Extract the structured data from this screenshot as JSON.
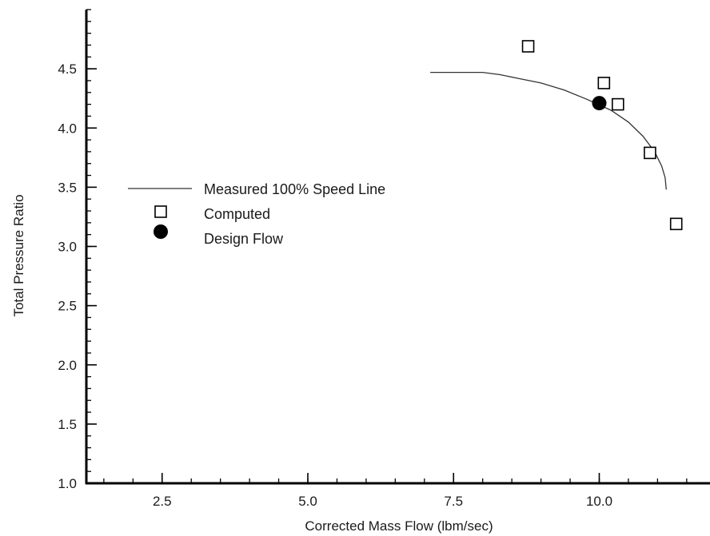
{
  "chart_data": {
    "type": "scatter",
    "xlabel": "Corrected Mass Flow (lbm/sec)",
    "ylabel": "Total Pressure Ratio",
    "xlim": [
      1.2,
      11.9
    ],
    "ylim": [
      1.0,
      5.0
    ],
    "x_ticks": [
      2.5,
      5.0,
      7.5,
      10.0
    ],
    "y_ticks": [
      1.0,
      1.5,
      2.0,
      2.5,
      3.0,
      3.5,
      4.0,
      4.5
    ],
    "x_tick_labels": [
      "2.5",
      "5.0",
      "7.5",
      "10.0"
    ],
    "y_tick_labels": [
      "1.0",
      "1.5",
      "2.0",
      "2.5",
      "3.0",
      "3.5",
      "4.0",
      "4.5"
    ],
    "x_minor_step": 0.5,
    "y_minor_step": 0.1,
    "grid": false,
    "legend_position": "middle-left",
    "series": [
      {
        "name": "Measured 100% Speed Line",
        "type": "line",
        "style": "solid-thin",
        "x": [
          7.1,
          7.6,
          8.0,
          8.3,
          8.6,
          9.0,
          9.4,
          9.8,
          10.2,
          10.5,
          10.75,
          10.95,
          11.07,
          11.13,
          11.15
        ],
        "y": [
          4.47,
          4.47,
          4.47,
          4.45,
          4.42,
          4.38,
          4.32,
          4.24,
          4.15,
          4.05,
          3.93,
          3.8,
          3.68,
          3.58,
          3.48
        ]
      },
      {
        "name": "Computed",
        "type": "scatter",
        "marker": "open-square",
        "x": [
          8.78,
          10.08,
          10.32,
          10.87,
          11.32
        ],
        "y": [
          4.69,
          4.38,
          4.2,
          3.79,
          3.19
        ]
      },
      {
        "name": "Design Flow",
        "type": "scatter",
        "marker": "filled-circle",
        "x": [
          10.0
        ],
        "y": [
          4.21
        ]
      }
    ]
  }
}
